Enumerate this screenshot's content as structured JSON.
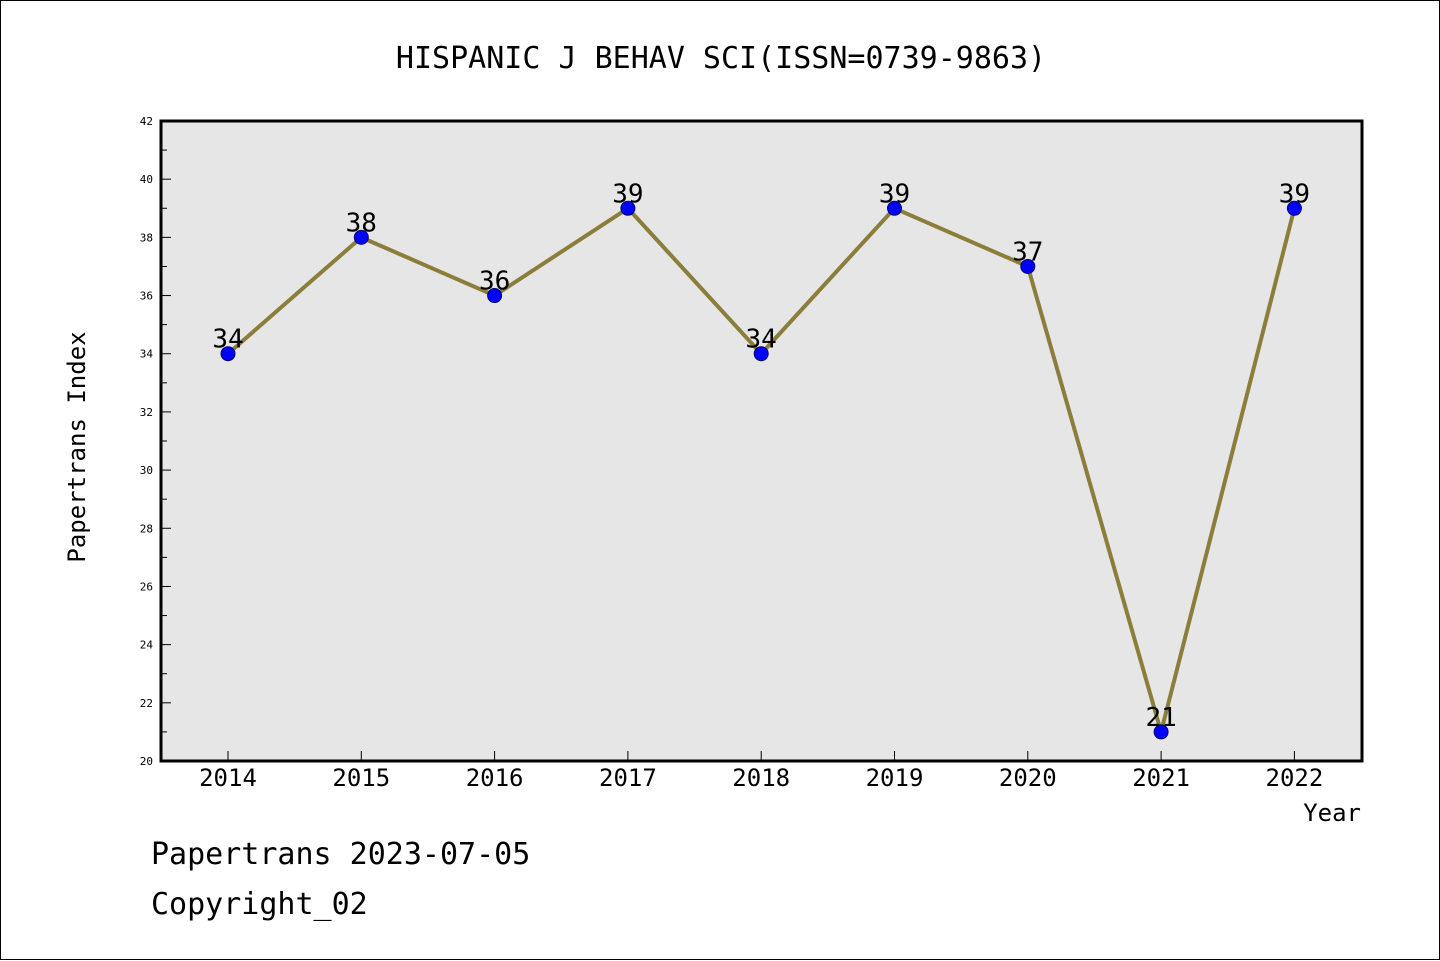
{
  "chart_data": {
    "type": "line",
    "title": "HISPANIC J BEHAV SCI(ISSN=0739-9863)",
    "xlabel": "Year",
    "ylabel": "Papertrans Index",
    "categories": [
      "2014",
      "2015",
      "2016",
      "2017",
      "2018",
      "2019",
      "2020",
      "2021",
      "2022"
    ],
    "series": [
      {
        "values": [
          34,
          38,
          36,
          39,
          34,
          39,
          37,
          21,
          39
        ]
      }
    ],
    "data_labels": [
      "34",
      "38",
      "36",
      "39",
      "34",
      "39",
      "37",
      "21",
      "39"
    ],
    "ylim": [
      20,
      42
    ],
    "yticks": [
      20,
      22,
      24,
      26,
      28,
      30,
      32,
      34,
      36,
      38,
      40,
      42
    ],
    "ytick_labels": [
      "20",
      "22",
      "24",
      "26",
      "28",
      "30",
      "32",
      "34",
      "36",
      "38",
      "40",
      "42"
    ],
    "grid": false,
    "colors": {
      "line": "#8b7d3a",
      "marker": "#0000ff",
      "plot_background": "#e6e6e6"
    }
  },
  "footer": {
    "line1": "Papertrans 2023-07-05",
    "line2": "Copyright_02"
  }
}
